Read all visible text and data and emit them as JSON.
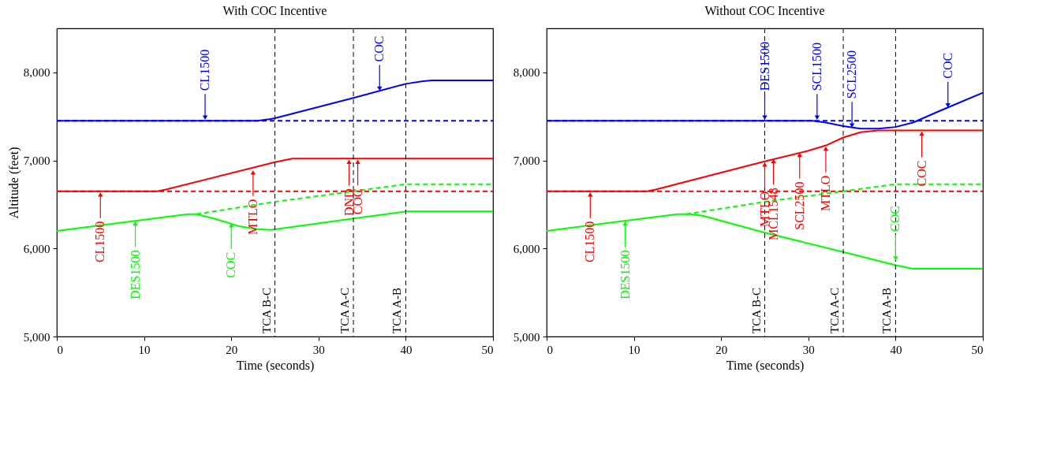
{
  "chart_data": [
    {
      "type": "line",
      "title": "With COC Incentive",
      "xlabel": "Time (seconds)",
      "ylabel": "Altitude (feet)",
      "xlim": [
        0,
        50
      ],
      "xticks": [
        0,
        10,
        20,
        30,
        40,
        50
      ],
      "ylim": [
        5000,
        8500
      ],
      "yticks": [
        {
          "value": 5000,
          "label": "5,000"
        },
        {
          "value": 6000,
          "label": "6,000"
        },
        {
          "value": 7000,
          "label": "7,000"
        },
        {
          "value": 8000,
          "label": "8,000"
        }
      ],
      "series": [
        {
          "color": "#0000ff",
          "line_style": "solid",
          "x": [
            0,
            23,
            24.5,
            25,
            34,
            40,
            42,
            43,
            50
          ],
          "values": [
            7450,
            7450,
            7470,
            7480,
            7710,
            7870,
            7900,
            7910,
            7910
          ]
        },
        {
          "color": "#0000ff",
          "line_style": "dashed",
          "x": [
            0,
            50
          ],
          "values": [
            7450,
            7450
          ]
        },
        {
          "color": "#ff0000",
          "line_style": "solid",
          "x": [
            0,
            11.5,
            12.5,
            25,
            27,
            50
          ],
          "values": [
            6650,
            6650,
            6670,
            6980,
            7020,
            7020
          ]
        },
        {
          "color": "#ff0000",
          "line_style": "dashed",
          "x": [
            0,
            50
          ],
          "values": [
            6650,
            6650
          ]
        },
        {
          "color": "#00ff00",
          "line_style": "solid",
          "x": [
            0,
            15,
            16,
            18,
            21,
            23,
            24.5,
            34,
            40,
            50
          ],
          "values": [
            6200,
            6390,
            6390,
            6340,
            6250,
            6220,
            6210,
            6340,
            6420,
            6420
          ]
        },
        {
          "color": "#00ff00",
          "line_style": "dashed",
          "x": [
            16,
            25,
            34,
            40,
            50
          ],
          "values": [
            6390,
            6530,
            6650,
            6730,
            6730
          ]
        }
      ],
      "ref_lines": [
        {
          "axis": "x",
          "value": 25,
          "label": "TCA B-C",
          "line_style": "dashed"
        },
        {
          "axis": "x",
          "value": 34,
          "label": "TCA A-C",
          "line_style": "dashed"
        },
        {
          "axis": "x",
          "value": 40,
          "label": "TCA A-B",
          "line_style": "dashed"
        }
      ],
      "annotations": [
        {
          "text": "CL1500",
          "x": 17,
          "y": 7450
        },
        {
          "text": "COC",
          "x": 37,
          "y": 7780
        },
        {
          "text": "CL1500",
          "x": 5,
          "y": 6650
        },
        {
          "text": "MTLO",
          "x": 22.5,
          "y": 6900
        },
        {
          "text": "DND",
          "x": 33.5,
          "y": 7020
        },
        {
          "text": "COC",
          "x": 34.5,
          "y": 7020
        },
        {
          "text": "DES1500",
          "x": 9,
          "y": 6320
        },
        {
          "text": "COC",
          "x": 20,
          "y": 6300
        }
      ]
    },
    {
      "type": "line",
      "title": "Without COC Incentive",
      "xlabel": "Time (seconds)",
      "xlim": [
        0,
        50
      ],
      "xticks": [
        0,
        10,
        20,
        30,
        40,
        50
      ],
      "ylim": [
        5000,
        8500
      ],
      "yticks": [
        {
          "value": 5000,
          "label": "5,000"
        },
        {
          "value": 6000,
          "label": "6,000"
        },
        {
          "value": 7000,
          "label": "7,000"
        },
        {
          "value": 8000,
          "label": "8,000"
        }
      ],
      "series": [
        {
          "color": "#0000ff",
          "line_style": "solid",
          "x": [
            0,
            30.5,
            32,
            34,
            36,
            38,
            40,
            42,
            45,
            50
          ],
          "values": [
            7450,
            7450,
            7430,
            7390,
            7360,
            7360,
            7380,
            7430,
            7560,
            7770
          ]
        },
        {
          "color": "#0000ff",
          "line_style": "dashed",
          "x": [
            0,
            50
          ],
          "values": [
            7450,
            7450
          ]
        },
        {
          "color": "#ff0000",
          "line_style": "solid",
          "x": [
            0,
            11.5,
            12.5,
            25,
            30,
            32,
            34,
            36,
            38,
            50
          ],
          "values": [
            6650,
            6650,
            6670,
            6990,
            7110,
            7170,
            7260,
            7320,
            7340,
            7340
          ]
        },
        {
          "color": "#ff0000",
          "line_style": "dashed",
          "x": [
            0,
            50
          ],
          "values": [
            6650,
            6650
          ]
        },
        {
          "color": "#00ff00",
          "line_style": "solid",
          "x": [
            0,
            15,
            16.5,
            18,
            25,
            34,
            40,
            42,
            50
          ],
          "values": [
            6200,
            6390,
            6390,
            6370,
            6180,
            5960,
            5810,
            5770,
            5770
          ]
        },
        {
          "color": "#00ff00",
          "line_style": "dashed",
          "x": [
            16,
            25,
            34,
            40,
            50
          ],
          "values": [
            6390,
            6530,
            6650,
            6730,
            6730
          ]
        }
      ],
      "ref_lines": [
        {
          "axis": "x",
          "value": 25,
          "label": "TCA B-C",
          "line_style": "dashed"
        },
        {
          "axis": "x",
          "value": 34,
          "label": "TCA A-C",
          "line_style": "dashed"
        },
        {
          "axis": "x",
          "value": 40,
          "label": "TCA A-B",
          "line_style": "dashed"
        }
      ],
      "annotations": [
        {
          "text": "DES1500",
          "x": 25,
          "y": 7450
        },
        {
          "text": "SCL1500",
          "x": 31,
          "y": 7450
        },
        {
          "text": "SCL2500",
          "x": 35,
          "y": 7360
        },
        {
          "text": "COC",
          "x": 46,
          "y": 7590
        },
        {
          "text": "CL1500",
          "x": 5,
          "y": 6650
        },
        {
          "text": "MTLO",
          "x": 25,
          "y": 6990
        },
        {
          "text": "MCL1548",
          "x": 26,
          "y": 7030
        },
        {
          "text": "SCL2500",
          "x": 29,
          "y": 7100
        },
        {
          "text": "MTLO",
          "x": 32,
          "y": 7170
        },
        {
          "text": "COC",
          "x": 43,
          "y": 7340
        },
        {
          "text": "DES1500",
          "x": 9,
          "y": 6320
        },
        {
          "text": "COC",
          "x": 40,
          "y": 5850
        }
      ]
    }
  ]
}
